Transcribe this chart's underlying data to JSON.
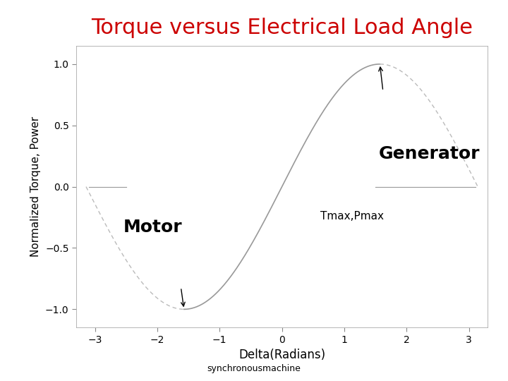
{
  "title": "Torque versus Electrical Load Angle",
  "title_color": "#cc0000",
  "title_fontsize": 22,
  "xlabel": "Delta(Radians)",
  "ylabel": "Normalized Torque, Power",
  "xlim": [
    -3.3,
    3.3
  ],
  "ylim": [
    -1.15,
    1.15
  ],
  "xticks": [
    -3,
    -2,
    -1,
    0,
    1,
    2,
    3
  ],
  "yticks": [
    -1,
    -0.5,
    0,
    0.5,
    1
  ],
  "label_generator": "Generator",
  "label_motor": "Motor",
  "label_tmax": "Tmax,Pmax",
  "footer": "synchronousmachine",
  "bg_color": "#ffffff",
  "curve_color": "#999999",
  "dashed_color": "#bbbbbb"
}
